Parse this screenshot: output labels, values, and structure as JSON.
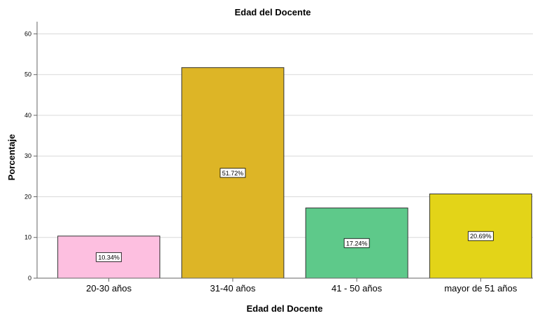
{
  "chart_data": {
    "type": "bar",
    "title": "Edad del Docente",
    "xlabel": "Edad del Docente",
    "ylabel": "Porcentaje",
    "ylim": [
      0,
      60
    ],
    "yticks": [
      0,
      10,
      20,
      30,
      40,
      50,
      60
    ],
    "grid": true,
    "categories": [
      "20-30 años",
      "31-40 años",
      "41 - 50 años",
      "mayor de 51 años"
    ],
    "values": [
      10.34,
      51.72,
      17.24,
      20.69
    ],
    "data_labels": [
      "10.34%",
      "51.72%",
      "17.24%",
      "20.69%"
    ],
    "colors": [
      "#fdbfe0",
      "#ddb526",
      "#5ec98a",
      "#e3d418"
    ]
  }
}
